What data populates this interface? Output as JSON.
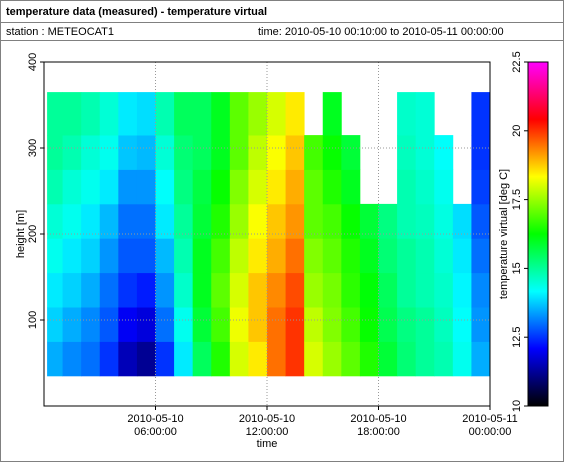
{
  "title": "temperature data (measured) - temperature virtual",
  "station": "station : METEOCAT1",
  "time_range": "time: 2010-05-10 00:10:00 to 2010-05-11 00:00:00",
  "chart_data": {
    "type": "heatmap",
    "xlabel": "time",
    "ylabel": "height [m]",
    "colorbar_label": "temperature virtual [deg C]",
    "xlim": [
      "2010-05-10 00:00:00",
      "2010-05-11 00:00:00"
    ],
    "xticks": [
      "2010-05-10 06:00:00",
      "2010-05-10 12:00:00",
      "2010-05-10 18:00:00",
      "2010-05-11 00:00:00"
    ],
    "ylim": [
      0,
      400
    ],
    "yticks": [
      100,
      200,
      300,
      400
    ],
    "clim": [
      10,
      22.5
    ],
    "cticks": [
      10,
      12.5,
      15,
      17.5,
      20,
      22.5
    ],
    "colormap": [
      "#000000",
      "#0000ff",
      "#00ffff",
      "#00ff00",
      "#ffff00",
      "#ff0000",
      "#ff00ff"
    ],
    "grid": true,
    "x": [
      "2010-05-10 00:10:00",
      "2010-05-10 01:00:00",
      "2010-05-10 02:00:00",
      "2010-05-10 03:00:00",
      "2010-05-10 04:00:00",
      "2010-05-10 05:00:00",
      "2010-05-10 06:00:00",
      "2010-05-10 07:00:00",
      "2010-05-10 08:00:00",
      "2010-05-10 09:00:00",
      "2010-05-10 10:00:00",
      "2010-05-10 11:00:00",
      "2010-05-10 12:00:00",
      "2010-05-10 13:00:00",
      "2010-05-10 14:00:00",
      "2010-05-10 15:00:00",
      "2010-05-10 16:00:00",
      "2010-05-10 17:00:00",
      "2010-05-10 18:00:00",
      "2010-05-10 19:00:00",
      "2010-05-10 20:00:00",
      "2010-05-10 21:00:00",
      "2010-05-10 22:00:00",
      "2010-05-10 23:00:00",
      "2010-05-11 00:00:00"
    ],
    "y": [
      35,
      75,
      115,
      155,
      195,
      235,
      275,
      315,
      365
    ],
    "values": [
      [
        13.5,
        13.8,
        14,
        14.3,
        14.5,
        14.8,
        15,
        15
      ],
      [
        13.2,
        13.5,
        13.8,
        14,
        14.3,
        14.5,
        14.8,
        15
      ],
      [
        13,
        13.2,
        13.5,
        13.8,
        14,
        14.3,
        14.5,
        14.8
      ],
      [
        12.5,
        12.8,
        13,
        13.3,
        13.6,
        14,
        14.3,
        14.5
      ],
      [
        11.5,
        12,
        12.5,
        12.8,
        13,
        13.3,
        13.7,
        14
      ],
      [
        11.2,
        11.8,
        12.3,
        12.8,
        13,
        13.3,
        13.6,
        13.9
      ],
      [
        12.5,
        13,
        13.3,
        13.6,
        14,
        14.2,
        14.5,
        14.8
      ],
      [
        14,
        14.3,
        14.6,
        14.8,
        15,
        15.2,
        15.3,
        15.5
      ],
      [
        15.5,
        15.8,
        16,
        16,
        15.8,
        15.7,
        15.5,
        15.5
      ],
      [
        16.5,
        16.8,
        17,
        16.8,
        16.5,
        16.3,
        16,
        16
      ],
      [
        18,
        18.2,
        18,
        17.8,
        17.5,
        17.3,
        17,
        17
      ],
      [
        18.5,
        18.8,
        18.8,
        18.5,
        18.3,
        18,
        17.8,
        17.5
      ],
      [
        19.5,
        19.5,
        19.3,
        19,
        18.8,
        18.5,
        18.3,
        18
      ],
      [
        20,
        20,
        19.8,
        19.5,
        19.2,
        19,
        18.8,
        18.5
      ],
      [
        18,
        17.8,
        17.5,
        17.3,
        17,
        17,
        16.8,
        null
      ],
      [
        17.5,
        17.3,
        17.2,
        17,
        16.8,
        16.5,
        16.3,
        16
      ],
      [
        17,
        16.8,
        16.6,
        16.5,
        16.3,
        16,
        15.8,
        null
      ],
      [
        16.5,
        16.3,
        16.2,
        16,
        15.8,
        null,
        null,
        null
      ],
      [
        15.8,
        15.6,
        15.5,
        15.3,
        15.2,
        null,
        null,
        null
      ],
      [
        15.3,
        15.2,
        15,
        15,
        14.8,
        14.8,
        14.7,
        14.6
      ],
      [
        15,
        15,
        14.8,
        14.8,
        14.7,
        14.6,
        14.5,
        14.5
      ],
      [
        14.8,
        14.7,
        14.6,
        14.5,
        14.4,
        14.3,
        14.2,
        null
      ],
      [
        14.3,
        14.2,
        14.1,
        14,
        13.9,
        null,
        null,
        null
      ],
      [
        13.5,
        13.3,
        13.2,
        13,
        12.8,
        12.6,
        12.5,
        12.5
      ]
    ]
  }
}
